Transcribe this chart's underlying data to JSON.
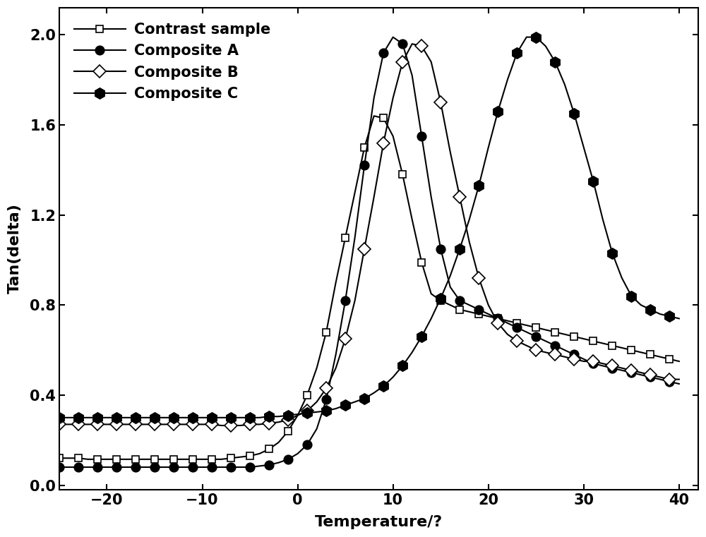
{
  "title": "",
  "xlabel": "Temperature/?",
  "ylabel": "Tan(delta)",
  "xlim": [
    -25,
    42
  ],
  "ylim": [
    -0.02,
    2.12
  ],
  "xticks": [
    -20,
    -10,
    0,
    10,
    20,
    30,
    40
  ],
  "yticks": [
    0.0,
    0.4,
    0.8,
    1.2,
    1.6,
    2.0
  ],
  "background_color": "#ffffff",
  "contrast_x": [
    -25,
    -24,
    -23,
    -22,
    -21,
    -20,
    -19,
    -18,
    -17,
    -16,
    -15,
    -14,
    -13,
    -12,
    -11,
    -10,
    -9,
    -8,
    -7,
    -6,
    -5,
    -4,
    -3,
    -2,
    -1,
    0,
    1,
    2,
    3,
    4,
    5,
    6,
    7,
    8,
    9,
    10,
    11,
    12,
    13,
    14,
    15,
    16,
    17,
    18,
    19,
    20,
    21,
    22,
    23,
    24,
    25,
    26,
    27,
    28,
    29,
    30,
    31,
    32,
    33,
    34,
    35,
    36,
    37,
    38,
    39,
    40
  ],
  "contrast_y": [
    0.12,
    0.12,
    0.12,
    0.115,
    0.115,
    0.115,
    0.115,
    0.115,
    0.115,
    0.115,
    0.115,
    0.115,
    0.115,
    0.115,
    0.115,
    0.115,
    0.115,
    0.115,
    0.12,
    0.125,
    0.13,
    0.14,
    0.16,
    0.19,
    0.24,
    0.31,
    0.4,
    0.52,
    0.68,
    0.9,
    1.1,
    1.3,
    1.5,
    1.64,
    1.63,
    1.55,
    1.38,
    1.18,
    0.99,
    0.85,
    0.82,
    0.8,
    0.78,
    0.77,
    0.76,
    0.75,
    0.74,
    0.73,
    0.72,
    0.71,
    0.7,
    0.69,
    0.68,
    0.67,
    0.66,
    0.65,
    0.64,
    0.63,
    0.62,
    0.61,
    0.6,
    0.59,
    0.58,
    0.57,
    0.56,
    0.55
  ],
  "compA_x": [
    -25,
    -24,
    -23,
    -22,
    -21,
    -20,
    -19,
    -18,
    -17,
    -16,
    -15,
    -14,
    -13,
    -12,
    -11,
    -10,
    -9,
    -8,
    -7,
    -6,
    -5,
    -4,
    -3,
    -2,
    -1,
    0,
    1,
    2,
    3,
    4,
    5,
    6,
    7,
    8,
    9,
    10,
    11,
    12,
    13,
    14,
    15,
    16,
    17,
    18,
    19,
    20,
    21,
    22,
    23,
    24,
    25,
    26,
    27,
    28,
    29,
    30,
    31,
    32,
    33,
    34,
    35,
    36,
    37,
    38,
    39,
    40
  ],
  "compA_y": [
    0.08,
    0.08,
    0.08,
    0.08,
    0.08,
    0.08,
    0.08,
    0.08,
    0.08,
    0.08,
    0.08,
    0.08,
    0.08,
    0.08,
    0.08,
    0.08,
    0.08,
    0.08,
    0.08,
    0.08,
    0.08,
    0.085,
    0.09,
    0.1,
    0.115,
    0.14,
    0.18,
    0.25,
    0.38,
    0.58,
    0.82,
    1.1,
    1.42,
    1.72,
    1.92,
    1.99,
    1.96,
    1.82,
    1.55,
    1.28,
    1.05,
    0.88,
    0.82,
    0.8,
    0.78,
    0.76,
    0.74,
    0.72,
    0.7,
    0.68,
    0.66,
    0.64,
    0.62,
    0.6,
    0.58,
    0.56,
    0.54,
    0.53,
    0.52,
    0.51,
    0.5,
    0.49,
    0.48,
    0.47,
    0.46,
    0.45
  ],
  "compB_x": [
    -25,
    -24,
    -23,
    -22,
    -21,
    -20,
    -19,
    -18,
    -17,
    -16,
    -15,
    -14,
    -13,
    -12,
    -11,
    -10,
    -9,
    -8,
    -7,
    -6,
    -5,
    -4,
    -3,
    -2,
    -1,
    0,
    1,
    2,
    3,
    4,
    5,
    6,
    7,
    8,
    9,
    10,
    11,
    12,
    13,
    14,
    15,
    16,
    17,
    18,
    19,
    20,
    21,
    22,
    23,
    24,
    25,
    26,
    27,
    28,
    29,
    30,
    31,
    32,
    33,
    34,
    35,
    36,
    37,
    38,
    39,
    40
  ],
  "compB_y": [
    0.27,
    0.27,
    0.27,
    0.27,
    0.27,
    0.27,
    0.27,
    0.27,
    0.27,
    0.27,
    0.27,
    0.27,
    0.27,
    0.27,
    0.27,
    0.27,
    0.27,
    0.265,
    0.265,
    0.265,
    0.27,
    0.27,
    0.275,
    0.28,
    0.29,
    0.31,
    0.33,
    0.37,
    0.43,
    0.52,
    0.65,
    0.82,
    1.05,
    1.28,
    1.52,
    1.72,
    1.88,
    1.96,
    1.95,
    1.88,
    1.7,
    1.48,
    1.28,
    1.08,
    0.92,
    0.8,
    0.72,
    0.67,
    0.64,
    0.62,
    0.6,
    0.59,
    0.58,
    0.57,
    0.56,
    0.55,
    0.55,
    0.54,
    0.53,
    0.52,
    0.51,
    0.5,
    0.49,
    0.48,
    0.47,
    0.47
  ],
  "compC_x": [
    -25,
    -24,
    -23,
    -22,
    -21,
    -20,
    -19,
    -18,
    -17,
    -16,
    -15,
    -14,
    -13,
    -12,
    -11,
    -10,
    -9,
    -8,
    -7,
    -6,
    -5,
    -4,
    -3,
    -2,
    -1,
    0,
    1,
    2,
    3,
    4,
    5,
    6,
    7,
    8,
    9,
    10,
    11,
    12,
    13,
    14,
    15,
    16,
    17,
    18,
    19,
    20,
    21,
    22,
    23,
    24,
    25,
    26,
    27,
    28,
    29,
    30,
    31,
    32,
    33,
    34,
    35,
    36,
    37,
    38,
    39,
    40
  ],
  "compC_y": [
    0.3,
    0.3,
    0.3,
    0.3,
    0.3,
    0.3,
    0.3,
    0.3,
    0.3,
    0.3,
    0.3,
    0.3,
    0.3,
    0.3,
    0.3,
    0.3,
    0.3,
    0.3,
    0.3,
    0.3,
    0.3,
    0.3,
    0.305,
    0.305,
    0.31,
    0.315,
    0.32,
    0.325,
    0.33,
    0.34,
    0.355,
    0.37,
    0.385,
    0.41,
    0.44,
    0.48,
    0.53,
    0.59,
    0.66,
    0.74,
    0.83,
    0.93,
    1.05,
    1.18,
    1.33,
    1.5,
    1.66,
    1.8,
    1.92,
    1.99,
    1.99,
    1.95,
    1.88,
    1.78,
    1.65,
    1.5,
    1.35,
    1.18,
    1.03,
    0.92,
    0.84,
    0.8,
    0.78,
    0.76,
    0.75,
    0.74
  ],
  "legend_fontsize": 15,
  "axis_fontsize": 16,
  "tick_fontsize": 15
}
